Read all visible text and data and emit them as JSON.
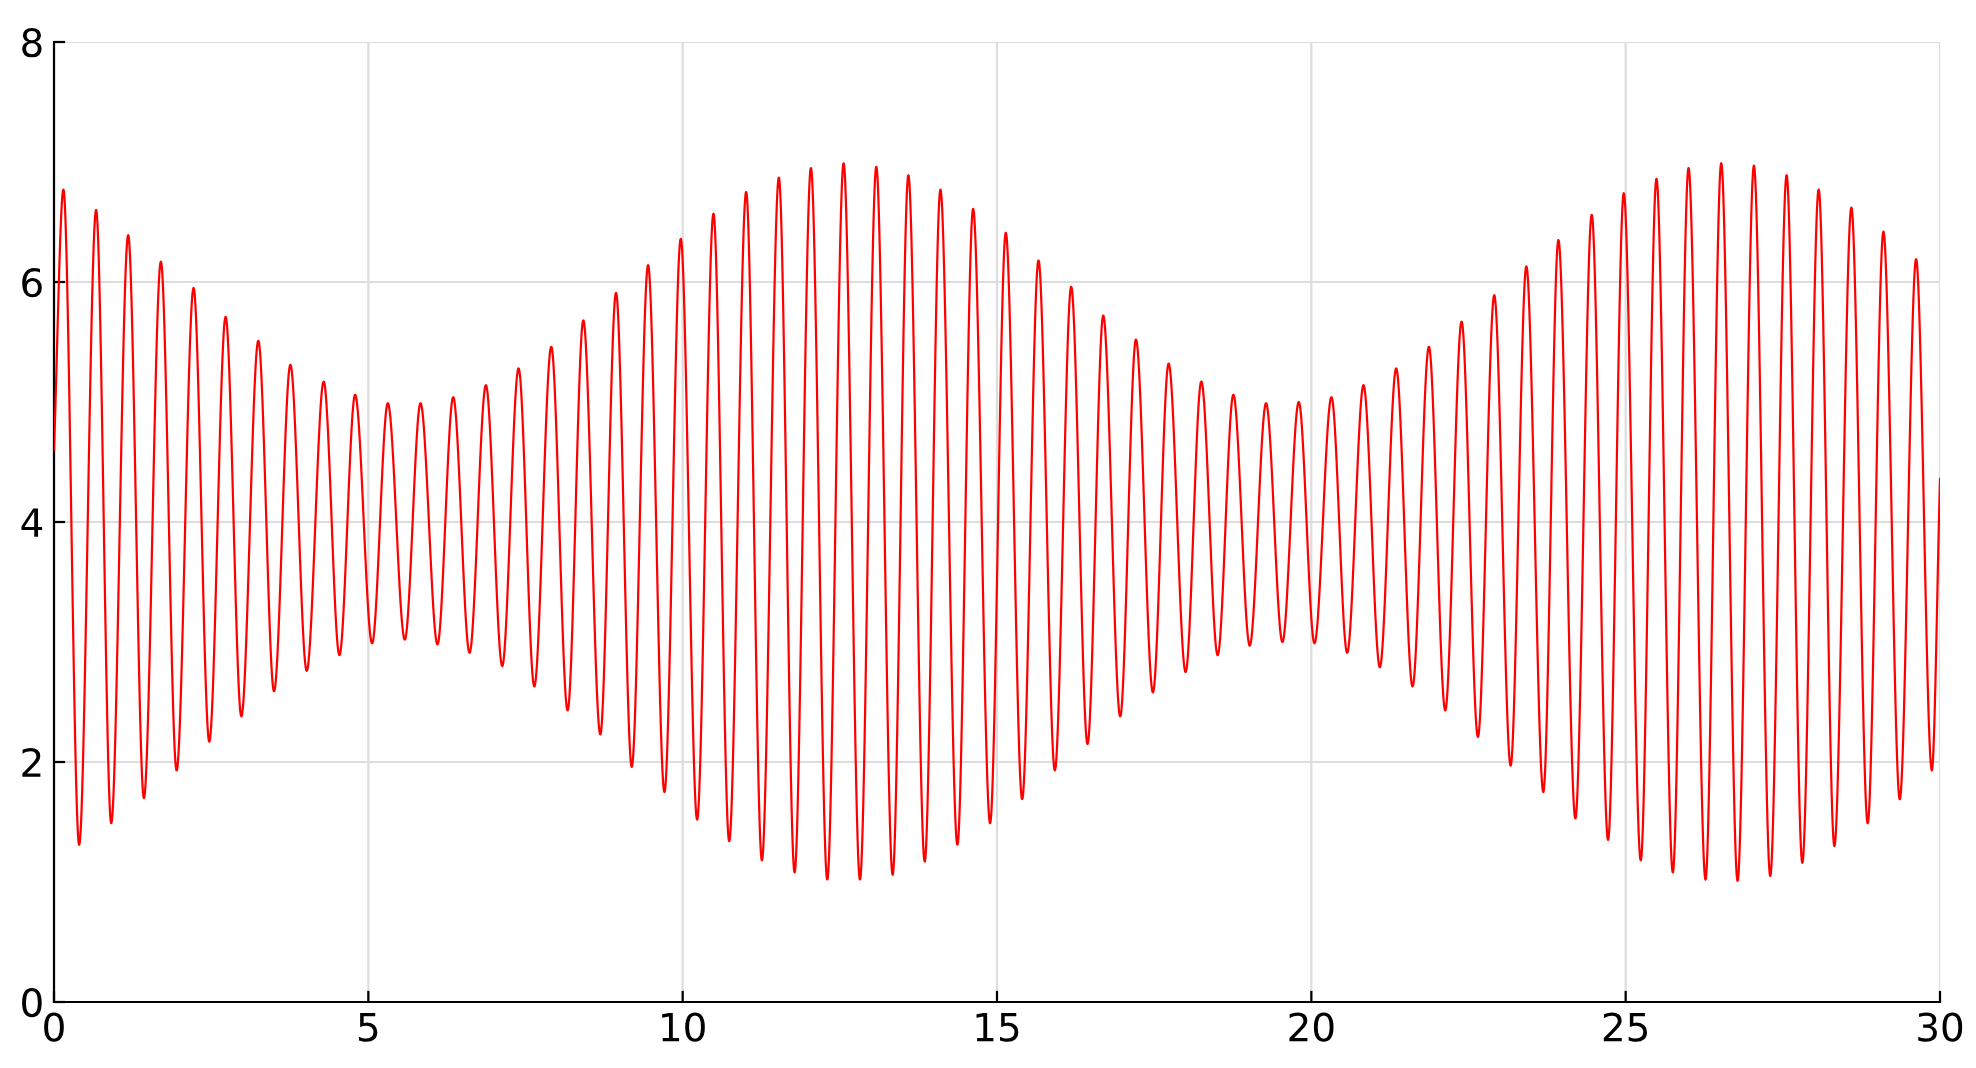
{
  "chart_data": {
    "type": "line",
    "xlim": [
      0,
      30
    ],
    "ylim": [
      0,
      8
    ],
    "xticks": [
      0,
      5,
      10,
      15,
      20,
      25,
      30
    ],
    "yticks": [
      0,
      2,
      4,
      6,
      8
    ],
    "grid": true,
    "line_style": "solid",
    "marker": "none",
    "series": [
      {
        "color": "#ff0000",
        "x": [
          0,
          0.15,
          0.4,
          0.67,
          0.91,
          1.18,
          1.43,
          1.7,
          1.95,
          2.22,
          2.47,
          2.73,
          2.98,
          3.25,
          3.5,
          3.76,
          4.02,
          4.29,
          4.54,
          4.79,
          5.06,
          5.31,
          5.58,
          5.83,
          6.1,
          6.35,
          6.61,
          6.87,
          7.13,
          7.39,
          7.64,
          7.91,
          8.17,
          8.42,
          8.69,
          8.94,
          9.19,
          9.45,
          9.71,
          9.97,
          10.23,
          10.49,
          10.74,
          11.01,
          11.26,
          11.53,
          11.78,
          12.04,
          12.3,
          12.56,
          12.82,
          13.08,
          13.34,
          13.59,
          13.85,
          14.1,
          14.37,
          14.62,
          14.89,
          15.14,
          15.4,
          15.66,
          15.92,
          16.18,
          16.44,
          16.69,
          16.96,
          17.21,
          17.48,
          17.73,
          18.0,
          18.25,
          18.51,
          18.76,
          19.02,
          19.28,
          19.54,
          19.8,
          20.05,
          20.32,
          20.57,
          20.83,
          21.09,
          21.35,
          21.61,
          21.87,
          22.13,
          22.39,
          22.65,
          22.91,
          23.17,
          23.42,
          23.69,
          23.93,
          24.2,
          24.46,
          24.72,
          24.97,
          25.24,
          25.49,
          25.75,
          26.0,
          26.27,
          26.52,
          26.78,
          27.04,
          27.3,
          27.56,
          27.81,
          28.07,
          28.32,
          28.59,
          28.85,
          29.1,
          29.36,
          29.62,
          29.87,
          30
        ],
        "values": [
          4.6,
          6.77,
          1.31,
          6.6,
          1.49,
          6.39,
          1.7,
          6.17,
          1.93,
          5.95,
          2.17,
          5.71,
          2.38,
          5.51,
          2.59,
          5.31,
          2.76,
          5.17,
          2.89,
          5.06,
          2.99,
          4.99,
          3.02,
          4.99,
          2.98,
          5.04,
          2.91,
          5.14,
          2.8,
          5.28,
          2.63,
          5.46,
          2.43,
          5.68,
          2.23,
          5.91,
          1.96,
          6.14,
          1.75,
          6.36,
          1.52,
          6.57,
          1.34,
          6.75,
          1.18,
          6.87,
          1.08,
          6.95,
          1.02,
          6.99,
          1.02,
          6.96,
          1.06,
          6.89,
          1.17,
          6.77,
          1.31,
          6.61,
          1.49,
          6.41,
          1.69,
          6.18,
          1.93,
          5.96,
          2.15,
          5.72,
          2.38,
          5.52,
          2.58,
          5.32,
          2.75,
          5.17,
          2.89,
          5.06,
          2.97,
          4.99,
          3.0,
          5.0,
          2.99,
          5.04,
          2.91,
          5.14,
          2.79,
          5.28,
          2.63,
          5.46,
          2.43,
          5.67,
          2.21,
          5.89,
          1.97,
          6.13,
          1.75,
          6.35,
          1.53,
          6.56,
          1.35,
          6.74,
          1.18,
          6.86,
          1.08,
          6.95,
          1.02,
          6.99,
          1.01,
          6.97,
          1.05,
          6.89,
          1.16,
          6.77,
          1.3,
          6.62,
          1.49,
          6.42,
          1.69,
          6.19,
          1.93,
          4.36
        ]
      }
    ]
  }
}
